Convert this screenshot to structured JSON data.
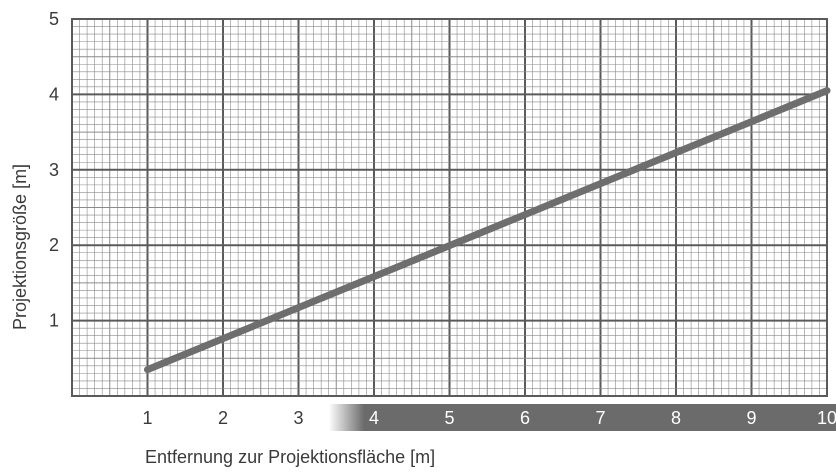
{
  "chart_data": {
    "type": "line",
    "title": "",
    "xlabel": "Entfernung zur Projektionsfläche [m]",
    "ylabel": "Projektionsgröße [m]",
    "xlim": [
      0,
      10
    ],
    "ylim": [
      0,
      5
    ],
    "grid": true,
    "x_ticks": [
      "1",
      "2",
      "3",
      "4",
      "5",
      "6",
      "7",
      "8",
      "9",
      "10"
    ],
    "y_ticks": [
      "1",
      "2",
      "3",
      "4",
      "5"
    ],
    "series": [
      {
        "x": [
          1,
          10
        ],
        "y": [
          0.35,
          4.05
        ]
      }
    ],
    "colors": {
      "line": "#6e6e6e",
      "grid_major": "#5a5a5a",
      "grid_minor": "#8a8a8a",
      "highlight_band": "#6b6b6b",
      "tick_text": "#3a3a3a",
      "tick_text_on_band": "#ffffff"
    },
    "highlight_range": [
      3.4,
      10
    ]
  }
}
